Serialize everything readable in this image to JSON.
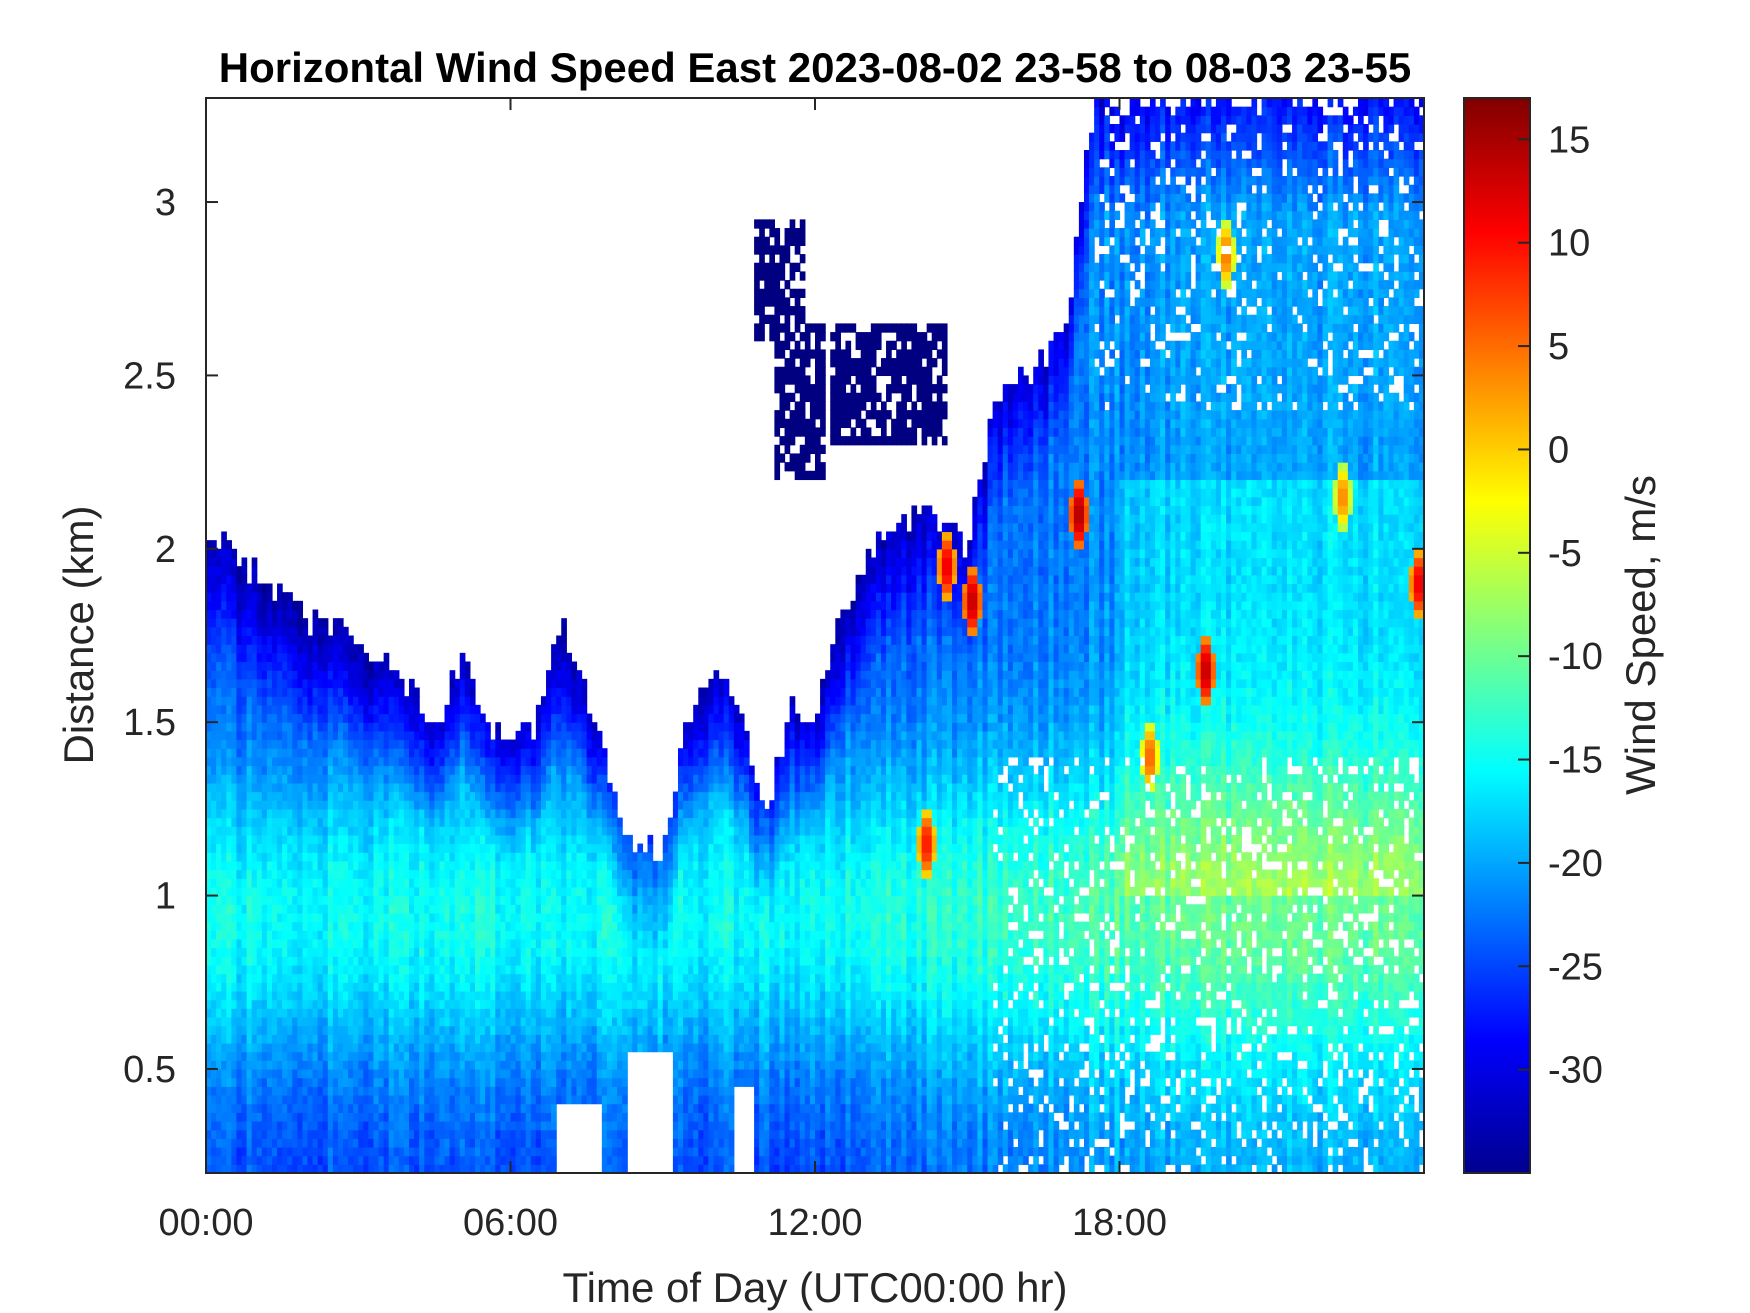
{
  "chart_data": {
    "type": "heatmap",
    "title": "Horizontal Wind Speed East 2023-08-02 23-58 to 08-03 23-55",
    "xlabel": "Time of Day (UTC00:00 hr)",
    "ylabel": "Distance (km)",
    "colorbar_label": "Wind Speed, m/s",
    "x_unit": "hours",
    "xlim": [
      0,
      24
    ],
    "ylim": [
      0.2,
      3.3
    ],
    "clim": [
      -35,
      17
    ],
    "colormap": "jet",
    "x_ticks": [
      0,
      6,
      12,
      18
    ],
    "x_tick_labels": [
      "00:00",
      "06:00",
      "12:00",
      "18:00"
    ],
    "y_ticks": [
      0.5,
      1,
      1.5,
      2,
      2.5,
      3
    ],
    "y_tick_labels": [
      "0.5",
      "1",
      "1.5",
      "2",
      "2.5",
      "3"
    ],
    "colorbar_ticks": [
      -30,
      -25,
      -20,
      -15,
      -10,
      -5,
      0,
      5,
      10,
      15
    ],
    "colorbar_tick_labels": [
      "-30",
      "-25",
      "-20",
      "-15",
      "-10",
      "-5",
      "0",
      "5",
      "10",
      "15"
    ],
    "grid": false,
    "data_top_profile": [
      {
        "x": 0.0,
        "y": 2.05
      },
      {
        "x": 0.5,
        "y": 2.0
      },
      {
        "x": 1.0,
        "y": 1.93
      },
      {
        "x": 2.0,
        "y": 1.8
      },
      {
        "x": 3.0,
        "y": 1.75
      },
      {
        "x": 4.0,
        "y": 1.6
      },
      {
        "x": 4.5,
        "y": 1.45
      },
      {
        "x": 5.0,
        "y": 1.7
      },
      {
        "x": 5.5,
        "y": 1.5
      },
      {
        "x": 6.0,
        "y": 1.45
      },
      {
        "x": 6.5,
        "y": 1.5
      },
      {
        "x": 7.0,
        "y": 1.8
      },
      {
        "x": 7.5,
        "y": 1.6
      },
      {
        "x": 8.0,
        "y": 1.3
      },
      {
        "x": 8.5,
        "y": 1.15
      },
      {
        "x": 9.0,
        "y": 1.15
      },
      {
        "x": 9.5,
        "y": 1.5
      },
      {
        "x": 10.0,
        "y": 1.65
      },
      {
        "x": 10.5,
        "y": 1.55
      },
      {
        "x": 11.0,
        "y": 1.2
      },
      {
        "x": 11.5,
        "y": 1.55
      },
      {
        "x": 12.0,
        "y": 1.5
      },
      {
        "x": 12.5,
        "y": 1.8
      },
      {
        "x": 13.0,
        "y": 1.95
      },
      {
        "x": 13.5,
        "y": 2.05
      },
      {
        "x": 14.0,
        "y": 2.1
      },
      {
        "x": 14.5,
        "y": 2.1
      },
      {
        "x": 15.0,
        "y": 2.0
      },
      {
        "x": 15.5,
        "y": 2.4
      },
      {
        "x": 16.0,
        "y": 2.5
      },
      {
        "x": 16.5,
        "y": 2.55
      },
      {
        "x": 17.0,
        "y": 2.7
      },
      {
        "x": 17.5,
        "y": 3.3
      },
      {
        "x": 18.0,
        "y": 3.3
      },
      {
        "x": 24.0,
        "y": 3.3
      }
    ],
    "upper_cloud_patches": [
      {
        "x0": 10.8,
        "x1": 11.8,
        "y0": 2.6,
        "y1": 2.95
      },
      {
        "x0": 11.2,
        "x1": 12.2,
        "y0": 2.2,
        "y1": 2.65
      },
      {
        "x0": 12.3,
        "x1": 14.6,
        "y0": 2.3,
        "y1": 2.65
      }
    ],
    "gap_near_surface": [
      {
        "x0": 6.9,
        "x1": 7.8,
        "y0": 0.2,
        "y1": 0.4
      },
      {
        "x0": 8.3,
        "x1": 9.2,
        "y0": 0.2,
        "y1": 0.55
      },
      {
        "x0": 10.4,
        "x1": 10.8,
        "y0": 0.2,
        "y1": 0.45
      }
    ],
    "hotspots": [
      {
        "x": 14.6,
        "y": 1.95,
        "value": 12
      },
      {
        "x": 15.1,
        "y": 1.85,
        "value": 14
      },
      {
        "x": 17.2,
        "y": 2.1,
        "value": 15
      },
      {
        "x": 18.6,
        "y": 1.4,
        "value": 6
      },
      {
        "x": 19.7,
        "y": 1.65,
        "value": 14
      },
      {
        "x": 20.1,
        "y": 2.85,
        "value": 5
      },
      {
        "x": 22.4,
        "y": 2.15,
        "value": 4
      },
      {
        "x": 14.2,
        "y": 1.15,
        "value": 10
      },
      {
        "x": 23.9,
        "y": 1.9,
        "value": 12
      }
    ]
  }
}
